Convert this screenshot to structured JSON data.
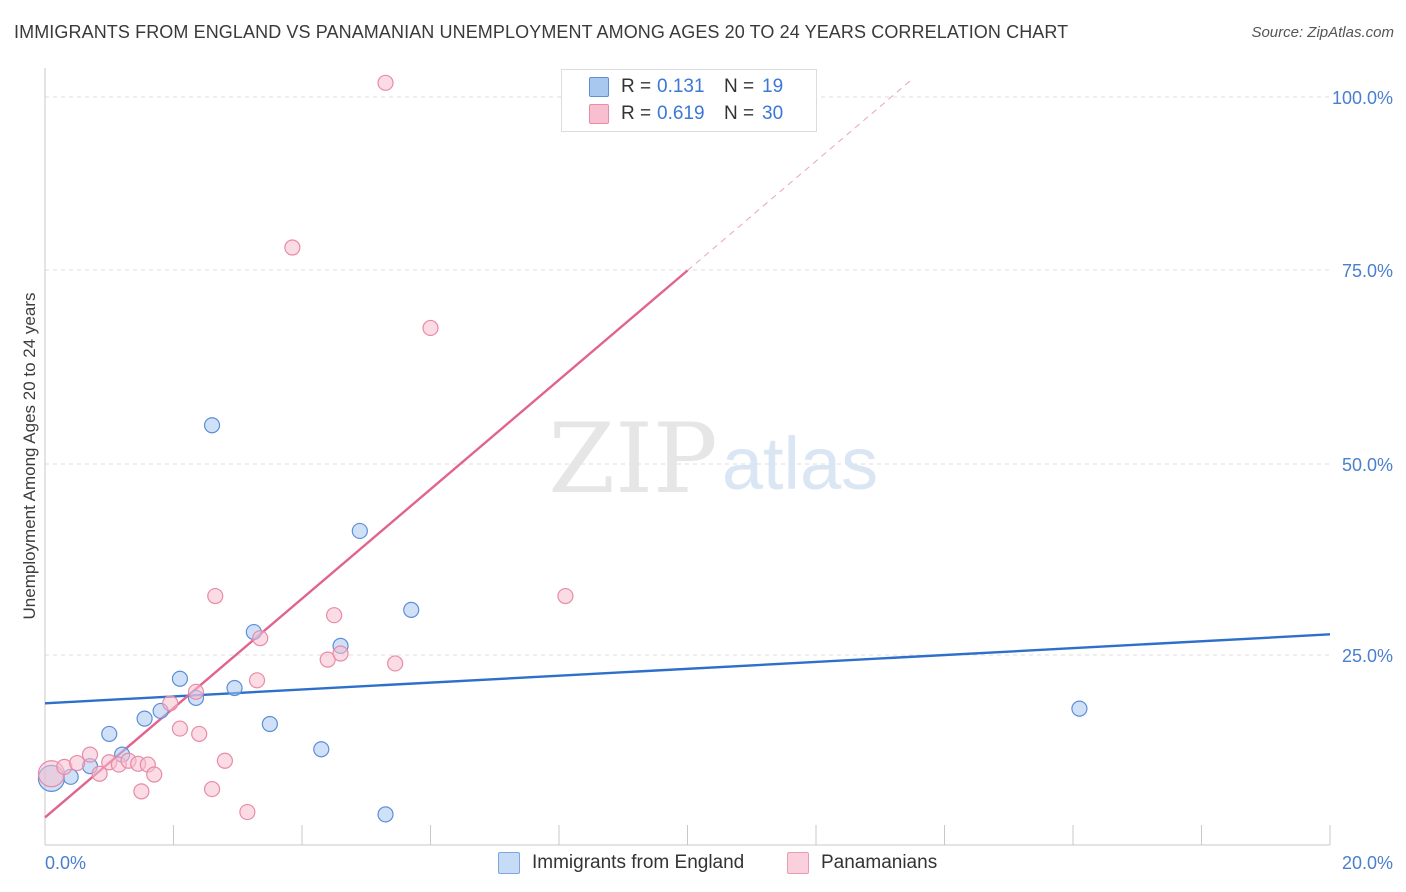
{
  "title": "IMMIGRANTS FROM ENGLAND VS PANAMANIAN UNEMPLOYMENT AMONG AGES 20 TO 24 YEARS CORRELATION CHART",
  "source": "Source: ZipAtlas.com",
  "watermark": {
    "zip": "ZIP",
    "atlas": "atlas"
  },
  "legend_top": {
    "rows": [
      {
        "r_key": "R =",
        "r_value": "0.131",
        "n_key": "N =",
        "n_value": "19",
        "color": "#a9c8f0",
        "border": "#5b8fd9"
      },
      {
        "r_key": "R =",
        "r_value": "0.619",
        "n_key": "N =",
        "n_value": "30",
        "color": "#f7bfd0",
        "border": "#e88aa8"
      }
    ]
  },
  "chart_data": {
    "type": "scatter",
    "title": "IMMIGRANTS FROM ENGLAND VS PANAMANIAN UNEMPLOYMENT AMONG AGES 20 TO 24 YEARS CORRELATION CHART",
    "xlabel": "",
    "ylabel": "Unemployment Among Ages 20 to 24 years",
    "xlim": [
      0,
      20
    ],
    "ylim": [
      0,
      100
    ],
    "x_tick_labels": {
      "min": "0.0%",
      "max": "20.0%"
    },
    "y_tick_labels": [
      "100.0%",
      "75.0%",
      "50.0%",
      "25.0%"
    ],
    "y_tick_values": [
      100,
      75,
      50,
      25
    ],
    "grid": true,
    "series": [
      {
        "name": "Immigrants from England",
        "color": "#a9c8f0",
        "edge": "#5b8fd9",
        "line_color": "#2d6fcb",
        "trend": {
          "x0": 0,
          "y0": 18.5,
          "x1": 20,
          "y1": 27.5,
          "dashed_from": null
        },
        "points": [
          {
            "x": 0.1,
            "y": 8.7,
            "big": true
          },
          {
            "x": 0.4,
            "y": 8.9
          },
          {
            "x": 0.7,
            "y": 10.3
          },
          {
            "x": 1.0,
            "y": 14.5
          },
          {
            "x": 1.2,
            "y": 11.8
          },
          {
            "x": 1.55,
            "y": 16.5
          },
          {
            "x": 1.8,
            "y": 17.5
          },
          {
            "x": 2.1,
            "y": 21.7
          },
          {
            "x": 2.35,
            "y": 19.2
          },
          {
            "x": 2.6,
            "y": 54.8
          },
          {
            "x": 2.95,
            "y": 20.5
          },
          {
            "x": 3.25,
            "y": 27.8
          },
          {
            "x": 3.5,
            "y": 15.8
          },
          {
            "x": 4.3,
            "y": 12.5
          },
          {
            "x": 4.6,
            "y": 26.0
          },
          {
            "x": 4.9,
            "y": 41.0
          },
          {
            "x": 5.3,
            "y": 4.0
          },
          {
            "x": 5.7,
            "y": 30.7
          },
          {
            "x": 16.1,
            "y": 17.8
          }
        ]
      },
      {
        "name": "Panamanians",
        "color": "#f7bfd0",
        "edge": "#e88aa8",
        "line_color": "#e0648f",
        "trend": {
          "x0": 0,
          "y0": 3.6,
          "x1": 10,
          "y1": 75,
          "dashed_to": {
            "x": 13.5,
            "y": 100
          }
        },
        "points": [
          {
            "x": 0.1,
            "y": 9.3,
            "big": true
          },
          {
            "x": 0.3,
            "y": 10.2
          },
          {
            "x": 0.5,
            "y": 10.7
          },
          {
            "x": 0.7,
            "y": 11.8
          },
          {
            "x": 0.85,
            "y": 9.3
          },
          {
            "x": 1.0,
            "y": 10.8
          },
          {
            "x": 1.15,
            "y": 10.5
          },
          {
            "x": 1.3,
            "y": 11.0
          },
          {
            "x": 1.45,
            "y": 10.6
          },
          {
            "x": 1.5,
            "y": 7.0
          },
          {
            "x": 1.6,
            "y": 10.5
          },
          {
            "x": 1.7,
            "y": 9.2
          },
          {
            "x": 1.95,
            "y": 18.5
          },
          {
            "x": 2.1,
            "y": 15.2
          },
          {
            "x": 2.35,
            "y": 20.0
          },
          {
            "x": 2.4,
            "y": 14.5
          },
          {
            "x": 2.6,
            "y": 7.3
          },
          {
            "x": 2.65,
            "y": 32.5
          },
          {
            "x": 2.8,
            "y": 11.0
          },
          {
            "x": 3.15,
            "y": 4.3
          },
          {
            "x": 3.3,
            "y": 21.5
          },
          {
            "x": 3.35,
            "y": 27.0
          },
          {
            "x": 3.85,
            "y": 78.0
          },
          {
            "x": 4.4,
            "y": 24.2
          },
          {
            "x": 4.5,
            "y": 30.0
          },
          {
            "x": 4.6,
            "y": 25.0
          },
          {
            "x": 5.3,
            "y": 99.5
          },
          {
            "x": 5.45,
            "y": 23.7
          },
          {
            "x": 6.0,
            "y": 67.5
          },
          {
            "x": 8.1,
            "y": 32.5
          }
        ]
      }
    ]
  },
  "legend_bottom": [
    {
      "label": "Immigrants from England",
      "color": "#a9c8f0",
      "border": "#5b8fd9"
    },
    {
      "label": "Panamanians",
      "color": "#f7bfd0",
      "border": "#e88aa8"
    }
  ]
}
